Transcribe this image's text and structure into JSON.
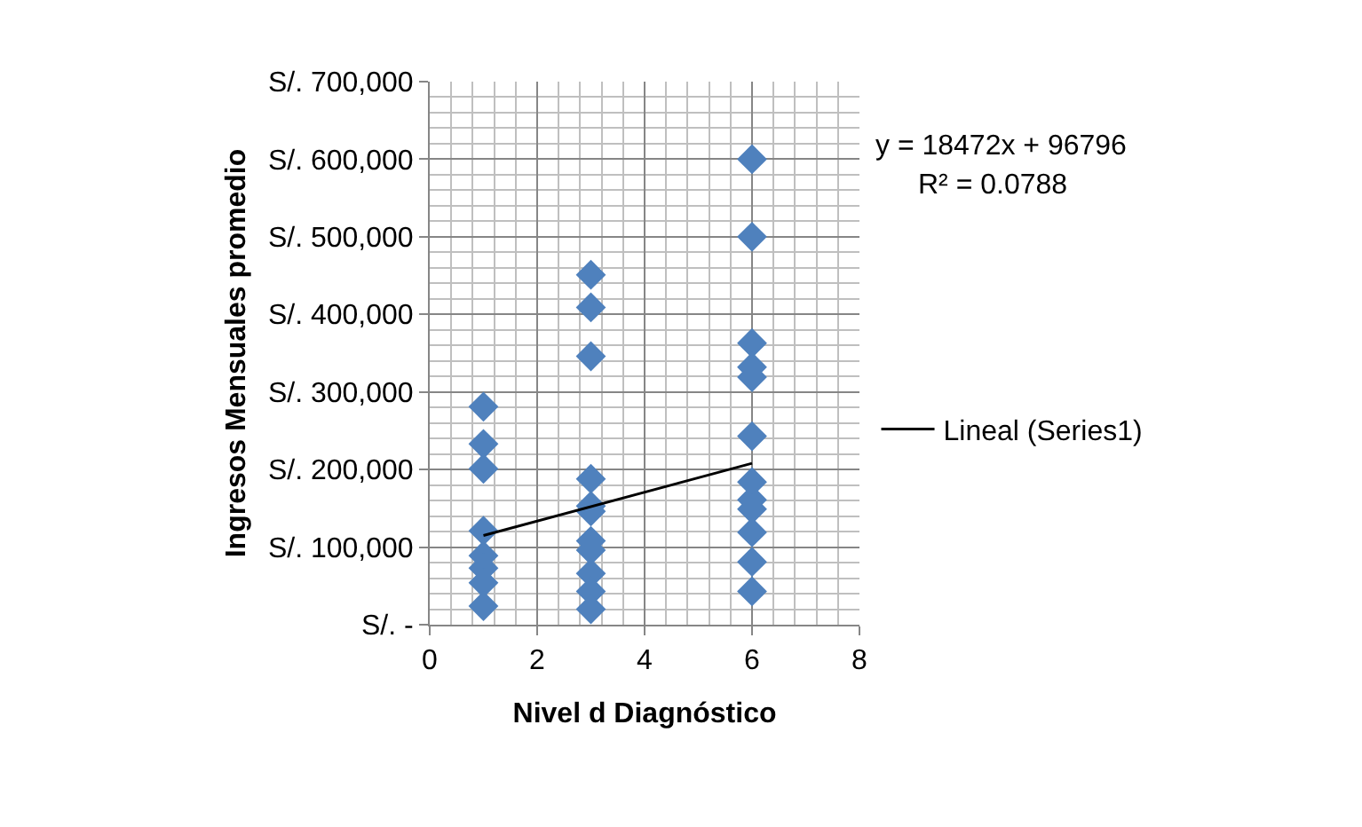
{
  "chart_data": {
    "type": "scatter",
    "xlabel": "Nivel d Diagnóstico",
    "ylabel": "Ingresos Mensuales promedio",
    "xlim": [
      0,
      8
    ],
    "xticks": [
      0,
      2,
      4,
      6,
      8
    ],
    "ylim": [
      0,
      700000
    ],
    "yticks": [
      {
        "value": 0,
        "label": "S/. -"
      },
      {
        "value": 100000,
        "label": "S/. 100,000"
      },
      {
        "value": 200000,
        "label": "S/. 200,000"
      },
      {
        "value": 300000,
        "label": "S/. 300,000"
      },
      {
        "value": 400000,
        "label": "S/. 400,000"
      },
      {
        "value": 500000,
        "label": "S/. 500,000"
      },
      {
        "value": 600000,
        "label": "S/. 600,000"
      },
      {
        "value": 700000,
        "label": "S/. 700,000"
      }
    ],
    "grid": true,
    "legend": "right",
    "marker": "diamond",
    "series": [
      {
        "color": "#4f81bd",
        "x": [
          1,
          1,
          1,
          1,
          1,
          1,
          1,
          1,
          3,
          3,
          3,
          3,
          3,
          3,
          3,
          3,
          3,
          3,
          3,
          6,
          6,
          6,
          6,
          6,
          6,
          6,
          6,
          6,
          6,
          6,
          6
        ],
        "values": [
          281000,
          233000,
          201000,
          121000,
          89000,
          73000,
          54000,
          24000,
          451000,
          409000,
          346000,
          188000,
          153000,
          146000,
          108000,
          96000,
          66000,
          43000,
          20000,
          600000,
          500000,
          363000,
          332000,
          319000,
          243000,
          184000,
          161000,
          149000,
          119000,
          81000,
          43000
        ]
      },
      {
        "type": "line",
        "name": "Lineal (Series1)",
        "color": "#000000",
        "marker": "none",
        "line_style": "solid",
        "x": [
          1,
          6
        ],
        "values": [
          115000,
          208000
        ]
      }
    ],
    "annotations": [
      "y = 18472x + 96796",
      "R² = 0.0788"
    ]
  }
}
